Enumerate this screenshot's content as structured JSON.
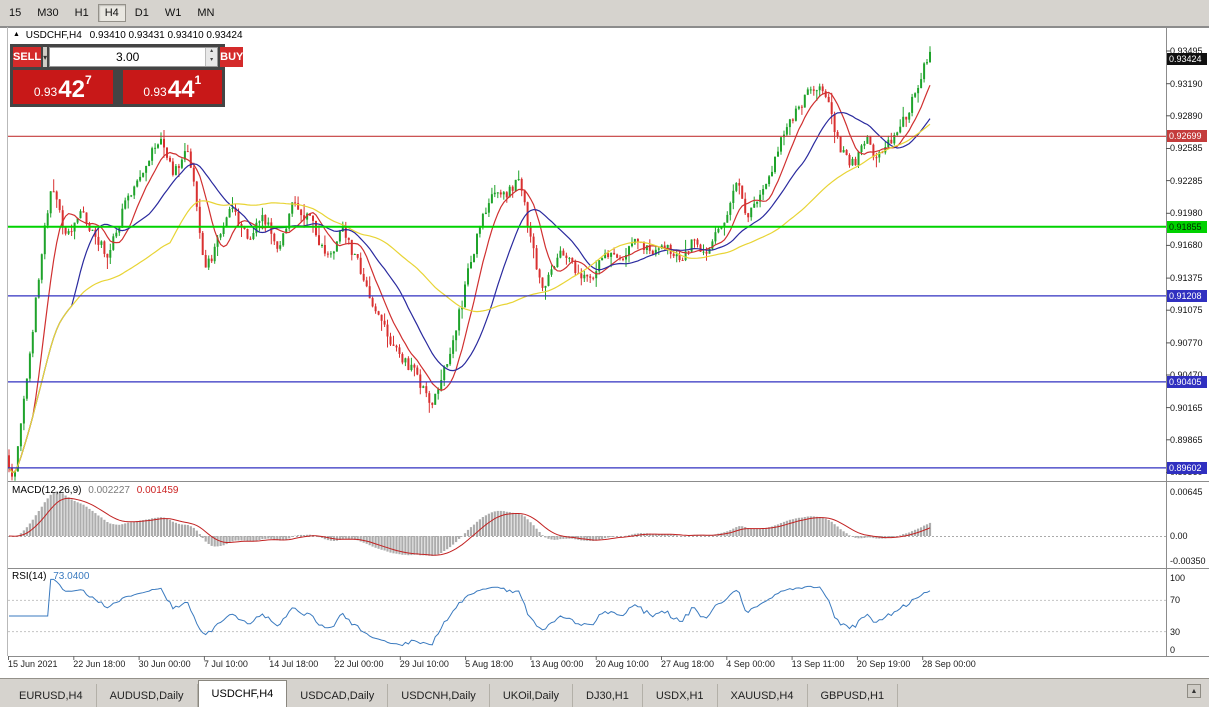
{
  "toolbar": {
    "timeframes": [
      {
        "label": "15",
        "active": false
      },
      {
        "label": "M30",
        "active": false
      },
      {
        "label": "H1",
        "active": false
      },
      {
        "label": "H4",
        "active": true
      },
      {
        "label": "D1",
        "active": false
      },
      {
        "label": "W1",
        "active": false
      },
      {
        "label": "MN",
        "active": false
      }
    ]
  },
  "chart_header": {
    "collapse_icon": "▲",
    "title": "USDCHF,H4",
    "ohlc": "0.93410 0.93431 0.93410 0.93424"
  },
  "trade_panel": {
    "sell_label": "SELL",
    "buy_label": "BUY",
    "volume": "3.00",
    "dropdown_icon": "▾",
    "spinner_up": "▴",
    "spinner_down": "▾",
    "sell_price": {
      "prefix": "0.93",
      "big": "42",
      "sup": "7"
    },
    "buy_price": {
      "prefix": "0.93",
      "big": "44",
      "sup": "1"
    }
  },
  "price_axis": {
    "ticks": [
      "0.93495",
      "0.93190",
      "0.92890",
      "0.92585",
      "0.92285",
      "0.91980",
      "0.91680",
      "0.91375",
      "0.91075",
      "0.90770",
      "0.90470",
      "0.90165",
      "0.89865",
      "0.89560"
    ],
    "labels": [
      {
        "text": "0.93424",
        "value": 0.93424,
        "bg": "#101010",
        "fg": "#ffffff",
        "name": "current-price-label"
      },
      {
        "text": "0.92699",
        "value": 0.92699,
        "bg": "#c43c3c",
        "fg": "#ffffff",
        "name": "level-label-92699"
      },
      {
        "text": "0.91855",
        "value": 0.91855,
        "bg": "#00d200",
        "fg": "#002800",
        "name": "level-label-91855"
      },
      {
        "text": "0.91208",
        "value": 0.91208,
        "bg": "#3030c0",
        "fg": "#ffffff",
        "name": "level-label-91208"
      },
      {
        "text": "0.90405",
        "value": 0.90405,
        "bg": "#3030c0",
        "fg": "#ffffff",
        "name": "level-label-90405"
      },
      {
        "text": "0.89602",
        "value": 0.89602,
        "bg": "#3030c0",
        "fg": "#ffffff",
        "name": "level-label-89602"
      }
    ]
  },
  "time_axis": {
    "labels": [
      "15 Jun 2021",
      "22 Jun 18:00",
      "30 Jun 00:00",
      "7 Jul 10:00",
      "14 Jul 18:00",
      "22 Jul 00:00",
      "29 Jul 10:00",
      "5 Aug 18:00",
      "13 Aug 00:00",
      "20 Aug 10:00",
      "27 Aug 18:00",
      "4 Sep 00:00",
      "13 Sep 11:00",
      "20 Sep 19:00",
      "28 Sep 00:00"
    ]
  },
  "tabs": [
    {
      "label": "EURUSD,H4",
      "active": false
    },
    {
      "label": "AUDUSD,Daily",
      "active": false
    },
    {
      "label": "USDCHF,H4",
      "active": true
    },
    {
      "label": "USDCAD,Daily",
      "active": false
    },
    {
      "label": "USDCNH,Daily",
      "active": false
    },
    {
      "label": "UKOil,Daily",
      "active": false
    },
    {
      "label": "DJ30,H1",
      "active": false
    },
    {
      "label": "USDX,H1",
      "active": false
    },
    {
      "label": "XAUUSD,H4",
      "active": false
    },
    {
      "label": "GBPUSD,H1",
      "active": false
    }
  ],
  "tab_scroll_icon": "▲",
  "chart_data": {
    "type": "candlestick",
    "symbol": "USDCHF",
    "timeframe": "H4",
    "bars": 310,
    "price_range": {
      "top": 0.9371,
      "bottom": 0.8948
    },
    "up_color": "#1fa32b",
    "down_color": "#d93030",
    "price_path": [
      [
        0.0,
        0.8972
      ],
      [
        0.008,
        0.895
      ],
      [
        0.022,
        0.9045
      ],
      [
        0.04,
        0.918
      ],
      [
        0.05,
        0.9228
      ],
      [
        0.063,
        0.9168
      ],
      [
        0.078,
        0.92
      ],
      [
        0.094,
        0.9182
      ],
      [
        0.11,
        0.9158
      ],
      [
        0.13,
        0.9212
      ],
      [
        0.152,
        0.925
      ],
      [
        0.168,
        0.927
      ],
      [
        0.18,
        0.9235
      ],
      [
        0.198,
        0.9256
      ],
      [
        0.214,
        0.9142
      ],
      [
        0.227,
        0.9168
      ],
      [
        0.243,
        0.9208
      ],
      [
        0.26,
        0.9172
      ],
      [
        0.277,
        0.9192
      ],
      [
        0.294,
        0.9168
      ],
      [
        0.311,
        0.921
      ],
      [
        0.329,
        0.919
      ],
      [
        0.347,
        0.9158
      ],
      [
        0.364,
        0.918
      ],
      [
        0.381,
        0.915
      ],
      [
        0.399,
        0.9108
      ],
      [
        0.417,
        0.907
      ],
      [
        0.438,
        0.9052
      ],
      [
        0.461,
        0.9022
      ],
      [
        0.472,
        0.9048
      ],
      [
        0.49,
        0.9105
      ],
      [
        0.509,
        0.9178
      ],
      [
        0.527,
        0.9218
      ],
      [
        0.543,
        0.9214
      ],
      [
        0.555,
        0.9236
      ],
      [
        0.569,
        0.9162
      ],
      [
        0.581,
        0.9128
      ],
      [
        0.597,
        0.916
      ],
      [
        0.614,
        0.9146
      ],
      [
        0.631,
        0.913
      ],
      [
        0.647,
        0.9162
      ],
      [
        0.664,
        0.9154
      ],
      [
        0.68,
        0.9176
      ],
      [
        0.696,
        0.916
      ],
      [
        0.712,
        0.9168
      ],
      [
        0.727,
        0.9156
      ],
      [
        0.743,
        0.9172
      ],
      [
        0.759,
        0.9164
      ],
      [
        0.775,
        0.9188
      ],
      [
        0.79,
        0.9226
      ],
      [
        0.802,
        0.9196
      ],
      [
        0.817,
        0.9212
      ],
      [
        0.833,
        0.9256
      ],
      [
        0.848,
        0.9284
      ],
      [
        0.862,
        0.9302
      ],
      [
        0.876,
        0.9318
      ],
      [
        0.89,
        0.9296
      ],
      [
        0.903,
        0.9258
      ],
      [
        0.918,
        0.9242
      ],
      [
        0.931,
        0.9268
      ],
      [
        0.941,
        0.9246
      ],
      [
        0.955,
        0.9262
      ],
      [
        0.968,
        0.928
      ],
      [
        0.98,
        0.9302
      ],
      [
        0.991,
        0.9332
      ],
      [
        1.0,
        0.9344
      ]
    ],
    "moving_averages": [
      {
        "name": "fast",
        "period": 9,
        "color": "#d03030"
      },
      {
        "name": "medium",
        "period": 22,
        "color": "#2a2a9e"
      },
      {
        "name": "slow",
        "period": 55,
        "color": "#e8d435"
      }
    ],
    "levels": [
      {
        "value": 0.92699,
        "color": "#c43c3c",
        "width": 1.2
      },
      {
        "value": 0.91855,
        "color": "#00d200",
        "width": 2
      },
      {
        "value": 0.91208,
        "color": "#3030c0",
        "width": 1.2
      },
      {
        "value": 0.90405,
        "color": "#3030c0",
        "width": 1.2
      },
      {
        "value": 0.89602,
        "color": "#3030c0",
        "width": 1.2
      }
    ],
    "indicators": [
      {
        "name": "MACD",
        "label": "MACD(12,26,9)",
        "value_main": "0.002227",
        "value_signal": "0.001459",
        "params": {
          "fast": 12,
          "slow": 26,
          "signal": 9
        },
        "axis": [
          "0.00645",
          "0.00",
          "-0.00350"
        ],
        "range": {
          "max": 0.0065,
          "min": -0.0035
        },
        "histogram_color": "#adadad",
        "signal_color": "#c22222"
      },
      {
        "name": "RSI",
        "label": "RSI(14)",
        "value": "73.0400",
        "params": {
          "period": 14
        },
        "axis": [
          "100",
          "70",
          "30",
          "0"
        ],
        "levels": [
          70,
          30
        ],
        "line_color": "#3a7abf"
      }
    ]
  }
}
